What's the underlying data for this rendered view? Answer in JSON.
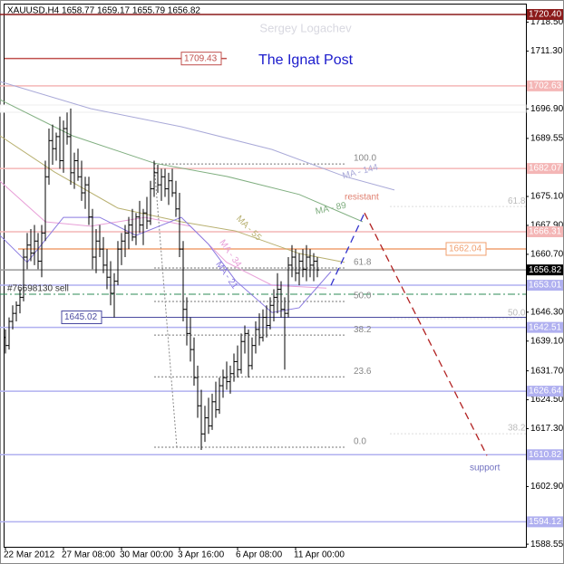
{
  "chart_data": {
    "type": "candlestick",
    "title": "The Ignat Post",
    "subtitle": "Sergey Logachev",
    "symbol_info": "XAUUSD,H4  1658.77 1659.17 1655.79 1656.82",
    "xlim": [
      -1.5,
      143.5
    ],
    "ylim": [
      1587.9,
      1723.1
    ],
    "yticks": [
      {
        "value": 1718.5,
        "label": "1718.50"
      },
      {
        "value": 1711.3,
        "label": "1711.30"
      },
      {
        "value": 1696.9,
        "label": "1696.90"
      },
      1689.55,
      {
        "value": 1675.1,
        "label": "1675.10"
      },
      {
        "value": 1667.9,
        "label": "1667.90"
      },
      {
        "value": 1660.7,
        "label": "1660.70"
      },
      {
        "value": 1646.3,
        "label": "1646.30"
      },
      {
        "value": 1639.1,
        "label": "1639.10"
      },
      {
        "value": 1631.7,
        "label": "1631.70"
      },
      {
        "value": 1624.5,
        "label": "1624.50"
      },
      {
        "value": 1617.3,
        "label": "1617.30"
      },
      {
        "value": 1602.9,
        "label": "1602.90"
      },
      1588.55
    ],
    "xticks": [
      {
        "value": 0,
        "label": "22 Mar 2012"
      },
      {
        "value": 16,
        "label": "27 Mar 08:00"
      },
      {
        "value": 32,
        "label": "30 Mar 00:00"
      },
      {
        "value": 48,
        "label": "3 Apr 16:00"
      },
      {
        "value": 64,
        "label": "6 Apr 08:00"
      },
      {
        "value": 80,
        "label": "11 Apr 00:00"
      }
    ],
    "open": [
      1640,
      1638,
      1644,
      1646,
      1648,
      1650,
      1660,
      1663,
      1661,
      1664,
      1659,
      1666,
      1680,
      1689,
      1687,
      1690,
      1684,
      1692,
      1690,
      1681,
      1684,
      1680,
      1676,
      1678,
      1670,
      1660,
      1664,
      1662,
      1658,
      1655,
      1651,
      1654,
      1662,
      1664,
      1666,
      1668,
      1665,
      1670,
      1668,
      1671,
      1669,
      1677,
      1681,
      1678,
      1680,
      1677,
      1679,
      1676,
      1672,
      1662,
      1647,
      1641,
      1637,
      1630,
      1623,
      1616,
      1620,
      1618,
      1624,
      1622,
      1628,
      1630,
      1629,
      1631,
      1634,
      1632,
      1639,
      1641,
      1633,
      1638,
      1642,
      1640,
      1645,
      1643,
      1648,
      1650,
      1652,
      1647,
      1646,
      1658,
      1660,
      1656,
      1659,
      1657,
      1660,
      1658,
      1659
    ],
    "high": [
      1642,
      1645,
      1648,
      1649,
      1652,
      1662,
      1666,
      1667,
      1668,
      1666,
      1668,
      1684,
      1692,
      1693,
      1691,
      1695,
      1694,
      1696,
      1697,
      1686,
      1687,
      1684,
      1680,
      1680,
      1672,
      1667,
      1668,
      1665,
      1662,
      1659,
      1656,
      1664,
      1666,
      1668,
      1670,
      1672,
      1671,
      1674,
      1672,
      1675,
      1679,
      1684,
      1683,
      1682,
      1682,
      1681,
      1682,
      1679,
      1676,
      1664,
      1650,
      1645,
      1640,
      1633,
      1627,
      1623,
      1625,
      1626,
      1629,
      1630,
      1632,
      1634,
      1633,
      1636,
      1638,
      1641,
      1643,
      1642,
      1640,
      1644,
      1646,
      1647,
      1648,
      1650,
      1652,
      1656,
      1654,
      1650,
      1660,
      1663,
      1662,
      1661,
      1662,
      1663,
      1662,
      1661,
      1660
    ],
    "low": [
      1636,
      1637,
      1642,
      1644,
      1646,
      1649,
      1657,
      1659,
      1658,
      1657,
      1655,
      1664,
      1678,
      1683,
      1684,
      1682,
      1681,
      1688,
      1678,
      1677,
      1679,
      1674,
      1672,
      1668,
      1657,
      1656,
      1660,
      1656,
      1652,
      1648,
      1645,
      1653,
      1658,
      1660,
      1662,
      1664,
      1663,
      1666,
      1663,
      1667,
      1668,
      1675,
      1676,
      1674,
      1675,
      1673,
      1675,
      1670,
      1660,
      1644,
      1638,
      1634,
      1628,
      1620,
      1612,
      1614,
      1616,
      1617,
      1620,
      1621,
      1625,
      1627,
      1626,
      1629,
      1630,
      1631,
      1636,
      1630,
      1632,
      1636,
      1638,
      1639,
      1640,
      1642,
      1644,
      1646,
      1645,
      1632,
      1645,
      1655,
      1654,
      1653,
      1655,
      1654,
      1655,
      1654,
      1655
    ],
    "close": [
      1638,
      1644,
      1646,
      1648,
      1650,
      1660,
      1663,
      1661,
      1664,
      1659,
      1666,
      1680,
      1689,
      1687,
      1690,
      1684,
      1692,
      1690,
      1681,
      1684,
      1680,
      1676,
      1678,
      1670,
      1660,
      1664,
      1662,
      1658,
      1655,
      1651,
      1654,
      1662,
      1664,
      1666,
      1668,
      1665,
      1670,
      1668,
      1671,
      1669,
      1677,
      1681,
      1678,
      1680,
      1677,
      1679,
      1676,
      1672,
      1662,
      1647,
      1641,
      1637,
      1630,
      1623,
      1616,
      1620,
      1618,
      1624,
      1622,
      1628,
      1630,
      1629,
      1631,
      1634,
      1632,
      1639,
      1641,
      1633,
      1638,
      1642,
      1640,
      1645,
      1643,
      1648,
      1650,
      1652,
      1647,
      1646,
      1658,
      1660,
      1656,
      1659,
      1657,
      1660,
      1658,
      1659,
      1656.82
    ],
    "series": [
      {
        "name": "MA - 144",
        "color": "#a9a9d8",
        "x": [
          -1.5,
          23.5,
          48.5,
          73.5,
          93.5,
          107.25
        ],
        "values": [
          1703.7,
          1696.96,
          1692.45,
          1686.8,
          1680.1,
          1676.7
        ]
      },
      {
        "name": "MA - 89",
        "color": "#7fae7f",
        "x": [
          -1.5,
          18.5,
          41,
          61,
          81,
          98.5
        ],
        "values": [
          1699.2,
          1690.2,
          1683.4,
          1680.1,
          1675.6,
          1668.8
        ]
      },
      {
        "name": "MA - 55",
        "color": "#b8b070",
        "x": [
          -1.5,
          13.5,
          31,
          48.5,
          63.5,
          81,
          93.5
        ],
        "values": [
          1690.2,
          1681.2,
          1672.2,
          1668.8,
          1666.5,
          1660.9,
          1658.7
        ]
      },
      {
        "name": "MA - 34",
        "color": "#e8a0d8",
        "x": [
          -1.5,
          11,
          23.5,
          38.5,
          51,
          61,
          73.5,
          88.5
        ],
        "values": [
          1678.9,
          1668.8,
          1667.7,
          1669.9,
          1667.7,
          1658.7,
          1653.0,
          1652.3
        ]
      },
      {
        "name": "MA - 21",
        "color": "#8a7ae0",
        "x": [
          -1.5,
          6,
          16,
          26,
          36,
          48.5,
          56,
          63.5,
          73.5,
          81,
          89.75
        ],
        "values": [
          1665.4,
          1658.7,
          1669.9,
          1669.9,
          1665.4,
          1669.9,
          1663.2,
          1654.1,
          1646.2,
          1647.4,
          1656.4
        ]
      }
    ],
    "levels": [
      {
        "value": 1720.4,
        "label": "1720.40",
        "color": "#8b1a1a"
      },
      {
        "value": 1709.43,
        "label": "1709.43",
        "color": "#c0504d"
      },
      {
        "value": 1702.63,
        "label": "1702.63",
        "color": "#f4b6b6"
      },
      {
        "value": 1682.07,
        "label": "1682.07",
        "color": "#f4b6b6"
      },
      {
        "value": 1666.31,
        "label": "1666.31",
        "color": "#f4b6b6"
      },
      {
        "value": 1662.04,
        "label": "1662.04",
        "color": "#f0a070"
      },
      {
        "value": 1656.82,
        "label": "1656.82",
        "color": "#000000"
      },
      {
        "value": 1653.01,
        "label": "1653.01",
        "color": "#b0b0f0"
      },
      {
        "value": 1645.02,
        "label": "1645.02",
        "color": "#4a4aa0"
      },
      {
        "value": 1642.51,
        "label": "1642.51",
        "color": "#b0b0f0"
      },
      {
        "value": 1626.64,
        "label": "1626.64",
        "color": "#b0b0f0"
      },
      {
        "value": 1610.82,
        "label": "1610.82",
        "color": "#b0b0f0"
      },
      {
        "value": 1594.12,
        "label": "1594.12",
        "color": "#b0b0f0"
      }
    ],
    "order": {
      "label": "#76698130 sell",
      "value": 1650.76,
      "color": "#2e8b57"
    },
    "fib_levels": [
      {
        "label": "100.0",
        "value": 1683.2
      },
      {
        "label": "61.8",
        "value": 1657.3
      },
      {
        "label": "50.0",
        "value": 1648.96
      },
      {
        "label": "38.2",
        "value": 1640.6
      },
      {
        "label": "23.6",
        "value": 1630.2
      },
      {
        "label": "0.0",
        "value": 1612.7
      }
    ],
    "fib_levels_2": [
      {
        "label": "61.8",
        "value": 1672.6
      },
      {
        "label": "50.0",
        "value": 1644.7
      },
      {
        "label": "38.2",
        "value": 1616.05
      }
    ],
    "forecast": [
      {
        "color": "#3333cc",
        "x": [
          89.75,
          99
        ],
        "values": [
          1653.0,
          1671.0
        ]
      },
      {
        "color": "#b22222",
        "x": [
          99,
          132.75
        ],
        "values": [
          1671.0,
          1610.6
        ]
      }
    ],
    "annotations": [
      {
        "text": "resistant",
        "color": "#e08070"
      },
      {
        "text": "support",
        "color": "#7070c0"
      }
    ]
  }
}
